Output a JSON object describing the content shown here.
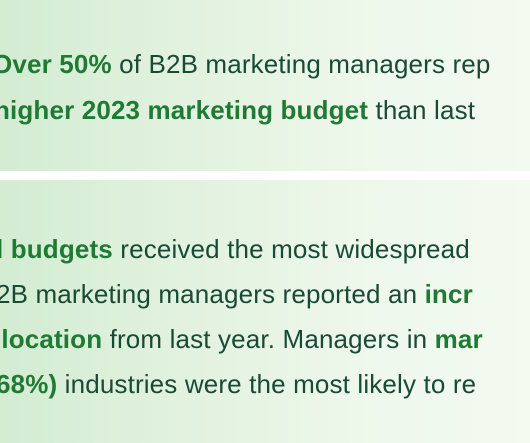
{
  "card1": {
    "line1": {
      "bold": "Over 50%",
      "rest": " of B2B marketing managers rep"
    },
    "line2": {
      "bold": "higher 2023 marketing budget",
      "rest": " than last"
    }
  },
  "card2": {
    "line1": {
      "bold": "l budgets",
      "rest": " received the most widespread"
    },
    "line2": {
      "pre": "2B marketing managers reported an ",
      "bold": "incr"
    },
    "line3": {
      "bold": "llocation",
      "rest": " from last year. Managers in ",
      "bold2": "mar"
    },
    "line4": {
      "bold": "68%)",
      "rest": " industries were the most likely to re"
    }
  },
  "colors": {
    "highlight": "#1f7a34",
    "text": "#184a36",
    "card_bg_left": "#d3ecd2",
    "card_bg_right": "#f3faf0"
  }
}
